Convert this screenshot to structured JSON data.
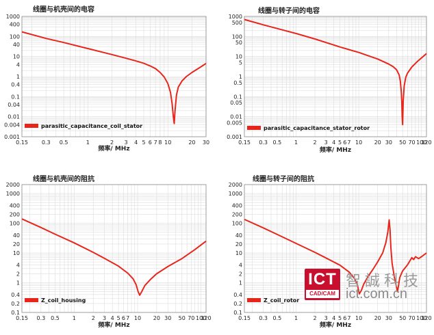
{
  "chart_data": [
    {
      "type": "line",
      "title": "线圈与机壳间的电容",
      "xlabel": "频率/ MHz",
      "ylabel": "",
      "x_scale": "log",
      "y_scale": "log",
      "xlim": [
        0.15,
        30
      ],
      "ylim": [
        0.001,
        1000
      ],
      "xticks": [
        "0.15",
        "0.3",
        "0.5",
        "1",
        "2",
        "3",
        "4",
        "5",
        "6",
        "7",
        "8",
        "10",
        "20",
        "30"
      ],
      "xtick_values": [
        0.15,
        0.3,
        0.5,
        1,
        2,
        3,
        4,
        5,
        6,
        7,
        8,
        10,
        20,
        30
      ],
      "yticks": [
        "1000",
        "400",
        "100",
        "40",
        "10",
        "4",
        "1",
        "0.4",
        "0.1",
        "0.04",
        "0.01",
        "0.004",
        "0.001"
      ],
      "ytick_values": [
        1000,
        400,
        100,
        40,
        10,
        4,
        1,
        0.4,
        0.1,
        0.04,
        0.01,
        0.004,
        0.001
      ],
      "grid": true,
      "legend_position": "bottom-left",
      "series": [
        {
          "name": "parasitic_capacitance_coil_stator",
          "color": "#e8251a",
          "x": [
            0.15,
            0.3,
            0.5,
            1,
            2,
            3,
            4,
            5,
            6,
            7,
            8,
            9,
            10,
            10.8,
            11.3,
            11.7,
            12.0,
            12.3,
            12.8,
            13.5,
            15,
            17,
            20,
            25,
            30
          ],
          "y": [
            170,
            80,
            50,
            25,
            12.5,
            8.2,
            6.0,
            4.6,
            3.4,
            2.5,
            1.6,
            0.95,
            0.45,
            0.16,
            0.045,
            0.01,
            0.0045,
            0.02,
            0.12,
            0.3,
            0.6,
            1.0,
            1.6,
            2.8,
            4.5
          ]
        }
      ]
    },
    {
      "type": "line",
      "title": "线圈与转子间的电容",
      "xlabel": "频率/ MHz",
      "ylabel": "",
      "x_scale": "log",
      "y_scale": "log",
      "xlim": [
        0.15,
        120
      ],
      "ylim": [
        0.001,
        1000
      ],
      "xticks": [
        "0.15",
        "0.3",
        "0.5",
        "1",
        "2",
        "3",
        "4",
        "5",
        "6",
        "7",
        "10",
        "20",
        "30",
        "50",
        "70",
        "100",
        "120"
      ],
      "xtick_values": [
        0.15,
        0.3,
        0.5,
        1,
        2,
        3,
        4,
        5,
        6,
        7,
        10,
        20,
        30,
        50,
        70,
        100,
        120
      ],
      "yticks": [
        "1000",
        "500",
        "100",
        "50",
        "10",
        "5",
        "1",
        "0.5",
        "0.1",
        "0.05",
        "0.01",
        "0.005",
        "0.001"
      ],
      "ytick_values": [
        1000,
        500,
        100,
        50,
        10,
        5,
        1,
        0.5,
        0.1,
        0.05,
        0.01,
        0.005,
        0.001
      ],
      "grid": true,
      "legend_position": "bottom-left",
      "series": [
        {
          "name": "parasitic_capacitance_stator_rotor",
          "color": "#e8251a",
          "x": [
            0.15,
            0.3,
            0.5,
            1,
            2,
            5,
            10,
            20,
            30,
            35,
            40,
            44,
            46,
            47.5,
            48.5,
            49.2,
            50,
            51,
            53,
            56,
            60,
            70,
            85,
            100,
            120
          ],
          "y": [
            700,
            380,
            250,
            140,
            75,
            30,
            16,
            7.5,
            4.2,
            3.2,
            2.2,
            1.2,
            0.6,
            0.2,
            0.05,
            0.01,
            0.004,
            0.06,
            0.35,
            0.9,
            1.5,
            3.0,
            5.5,
            8.5,
            14
          ]
        }
      ]
    },
    {
      "type": "line",
      "title": "线圈与机壳间的阻抗",
      "xlabel": "频率/ MHz",
      "ylabel": "",
      "x_scale": "log",
      "y_scale": "log",
      "xlim": [
        0.15,
        120
      ],
      "ylim": [
        0.1,
        2000
      ],
      "xticks": [
        "0.15",
        "0.3",
        "0.5",
        "1",
        "2",
        "3",
        "4",
        "5",
        "6",
        "7",
        "10",
        "20",
        "30",
        "50",
        "70",
        "100",
        "120"
      ],
      "xtick_values": [
        0.15,
        0.3,
        0.5,
        1,
        2,
        3,
        4,
        5,
        6,
        7,
        10,
        20,
        30,
        50,
        70,
        100,
        120
      ],
      "yticks": [
        "2000",
        "1000",
        "400",
        "200",
        "100",
        "40",
        "20",
        "10",
        "4",
        "2",
        "1",
        "0.4",
        "0.2",
        "0.1"
      ],
      "ytick_values": [
        2000,
        1000,
        400,
        200,
        100,
        40,
        20,
        10,
        4,
        2,
        1,
        0.4,
        0.2,
        0.1
      ],
      "grid": true,
      "legend_position": "bottom-left",
      "series": [
        {
          "name": "Z_coil_housing",
          "color": "#e8251a",
          "x": [
            0.15,
            0.3,
            0.5,
            1,
            2,
            3,
            5,
            7,
            8.5,
            9.5,
            10.2,
            10.8,
            11.5,
            13,
            16,
            20,
            30,
            50,
            80,
            120
          ],
          "y": [
            140,
            72,
            43,
            22,
            10.5,
            6.6,
            3.6,
            2.1,
            1.35,
            0.85,
            0.5,
            0.38,
            0.48,
            0.8,
            1.3,
            2.0,
            3.5,
            6.5,
            13,
            25
          ]
        }
      ]
    },
    {
      "type": "line",
      "title": "线圈与转子间的阻抗",
      "xlabel": "频率/ MHz",
      "ylabel": "",
      "x_scale": "log",
      "y_scale": "log",
      "xlim": [
        0.15,
        120
      ],
      "ylim": [
        0.1,
        2000
      ],
      "xticks": [
        "0.15",
        "0.3",
        "0.5",
        "1",
        "2",
        "3",
        "4",
        "5",
        "6",
        "7",
        "10",
        "20",
        "30",
        "50",
        "70",
        "100",
        "120"
      ],
      "xtick_values": [
        0.15,
        0.3,
        0.5,
        1,
        2,
        3,
        4,
        5,
        6,
        7,
        10,
        20,
        30,
        50,
        70,
        100,
        120
      ],
      "yticks": [
        "2000",
        "1000",
        "400",
        "200",
        "100",
        "40",
        "20",
        "10",
        "4",
        "2",
        "1",
        "0.4",
        "0.2",
        "0.1"
      ],
      "ytick_values": [
        2000,
        1000,
        400,
        200,
        100,
        40,
        20,
        10,
        4,
        2,
        1,
        0.4,
        0.2,
        0.1
      ],
      "grid": true,
      "legend_position": "bottom-left",
      "series": [
        {
          "name": "Z_coil_rotor",
          "color": "#e8251a",
          "x": [
            0.15,
            0.3,
            0.5,
            1,
            2,
            3,
            5,
            7,
            8.5,
            9.5,
            10.2,
            11,
            12,
            14,
            17,
            20,
            24,
            27,
            29,
            30.5,
            31.5,
            32.5,
            34,
            37,
            40,
            41.5,
            43,
            45,
            50,
            60,
            70,
            75,
            80,
            90,
            100,
            120
          ],
          "y": [
            135,
            70,
            42,
            21,
            10.5,
            6.8,
            3.9,
            2.3,
            1.4,
            0.85,
            0.42,
            0.55,
            0.9,
            1.6,
            2.9,
            5.0,
            10,
            22,
            50,
            130,
            60,
            15,
            4.5,
            1.5,
            0.7,
            0.5,
            0.8,
            1.5,
            2.5,
            4,
            7,
            6,
            7.5,
            6.5,
            7.5,
            10
          ]
        }
      ]
    }
  ],
  "watermark": {
    "logo": "ICT",
    "logo_sub": "CAD/CAM",
    "name_cn": "智誠科技",
    "url": "ict.com.cn"
  }
}
